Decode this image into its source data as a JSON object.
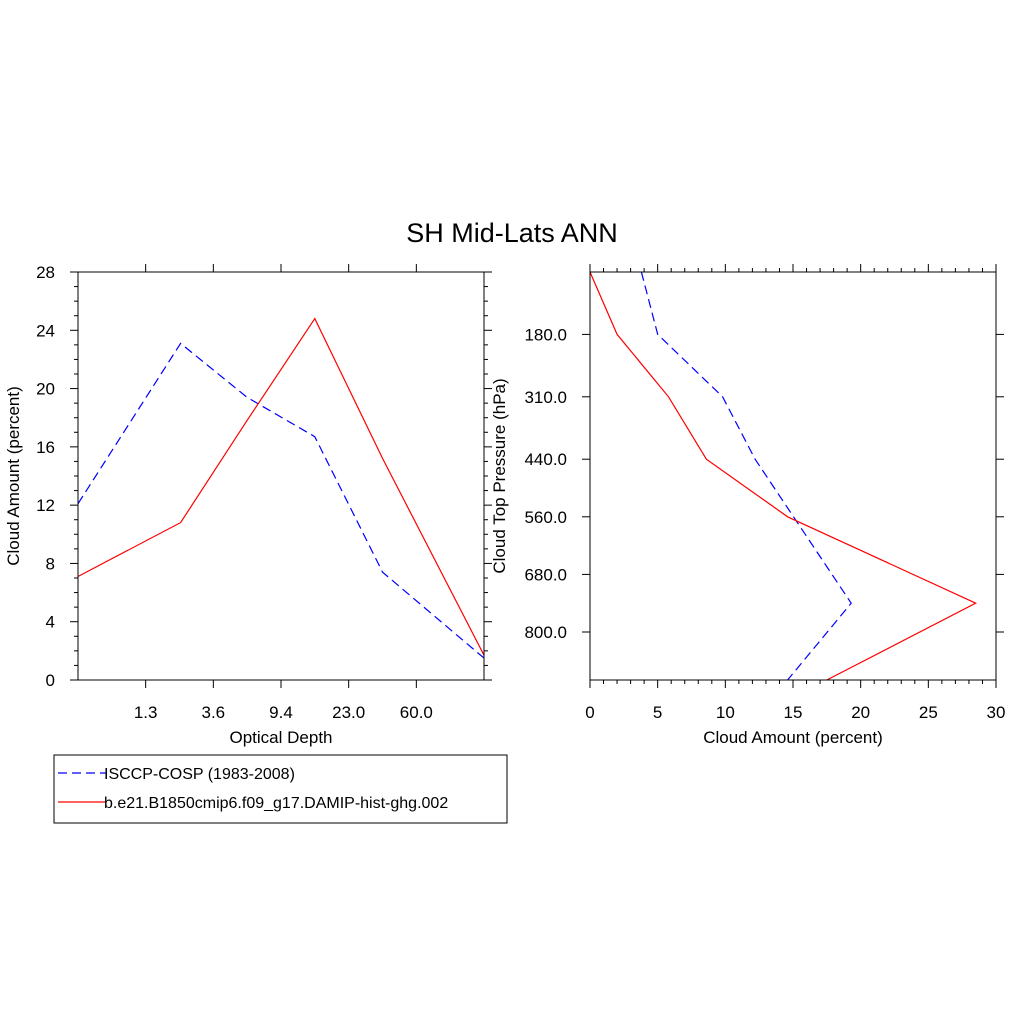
{
  "title": "SH Mid-Lats ANN",
  "colors": {
    "observed": "#0000ff",
    "model": "#ff0000",
    "axis": "#000000"
  },
  "legend": {
    "entries": [
      {
        "label": "ISCCP-COSP (1983-2008)",
        "style": "dashed",
        "color": "#0000ff"
      },
      {
        "label": "b.e21.B1850cmip6.f09_g17.DAMIP-hist-ghg.002",
        "style": "solid",
        "color": "#ff0000"
      }
    ]
  },
  "chart_data": [
    {
      "type": "line",
      "xlabel": "Optical Depth",
      "ylabel": "Cloud Amount (percent)",
      "x_tick_labels": [
        "1.3",
        "3.6",
        "9.4",
        "23.0",
        "60.0"
      ],
      "x_bin_edges": [
        0.3,
        1.3,
        3.6,
        9.4,
        23.0,
        60.0,
        380.0
      ],
      "y_ticks": [
        0,
        4,
        8,
        12,
        16,
        20,
        24,
        28
      ],
      "ylim": [
        0,
        28
      ],
      "series": [
        {
          "name": "ISCCP-COSP (1983-2008)",
          "style": "dashed",
          "color": "#0000ff",
          "x": [
            0.3,
            2.2,
            5.8,
            14.7,
            37.2,
            380.0
          ],
          "values": [
            12.1,
            23.1,
            19.4,
            16.7,
            7.4,
            1.5
          ]
        },
        {
          "name": "b.e21.B1850cmip6.f09_g17.DAMIP-hist-ghg.002",
          "style": "solid",
          "color": "#ff0000",
          "x": [
            0.3,
            2.2,
            5.8,
            14.7,
            37.2,
            380.0
          ],
          "values": [
            7.1,
            10.8,
            17.8,
            24.8,
            15.2,
            1.7
          ]
        }
      ]
    },
    {
      "type": "line",
      "xlabel": "Cloud Amount (percent)",
      "ylabel": "Cloud Top Pressure (hPa)",
      "x_ticks": [
        0,
        5,
        10,
        15,
        20,
        25,
        30
      ],
      "xlim": [
        0,
        30
      ],
      "y_tick_labels": [
        "180.0",
        "310.0",
        "440.0",
        "560.0",
        "680.0",
        "800.0"
      ],
      "y_tick_values": [
        180,
        310,
        440,
        560,
        680,
        800
      ],
      "ylim": [
        50,
        900
      ],
      "y_reversed": true,
      "series": [
        {
          "name": "ISCCP-COSP (1983-2008)",
          "style": "dashed",
          "color": "#0000ff",
          "x": [
            3.8,
            5.0,
            9.8,
            12.2,
            19.3,
            14.6
          ],
          "values": [
            50,
            180,
            310,
            440,
            740,
            900
          ]
        },
        {
          "name": "b.e21.B1850cmip6.f09_g17.DAMIP-hist-ghg.002",
          "style": "solid",
          "color": "#ff0000",
          "x": [
            0.0,
            2.0,
            5.8,
            8.6,
            14.6,
            28.5,
            17.5
          ],
          "values": [
            50,
            180,
            310,
            440,
            560,
            740,
            900
          ]
        }
      ]
    }
  ]
}
